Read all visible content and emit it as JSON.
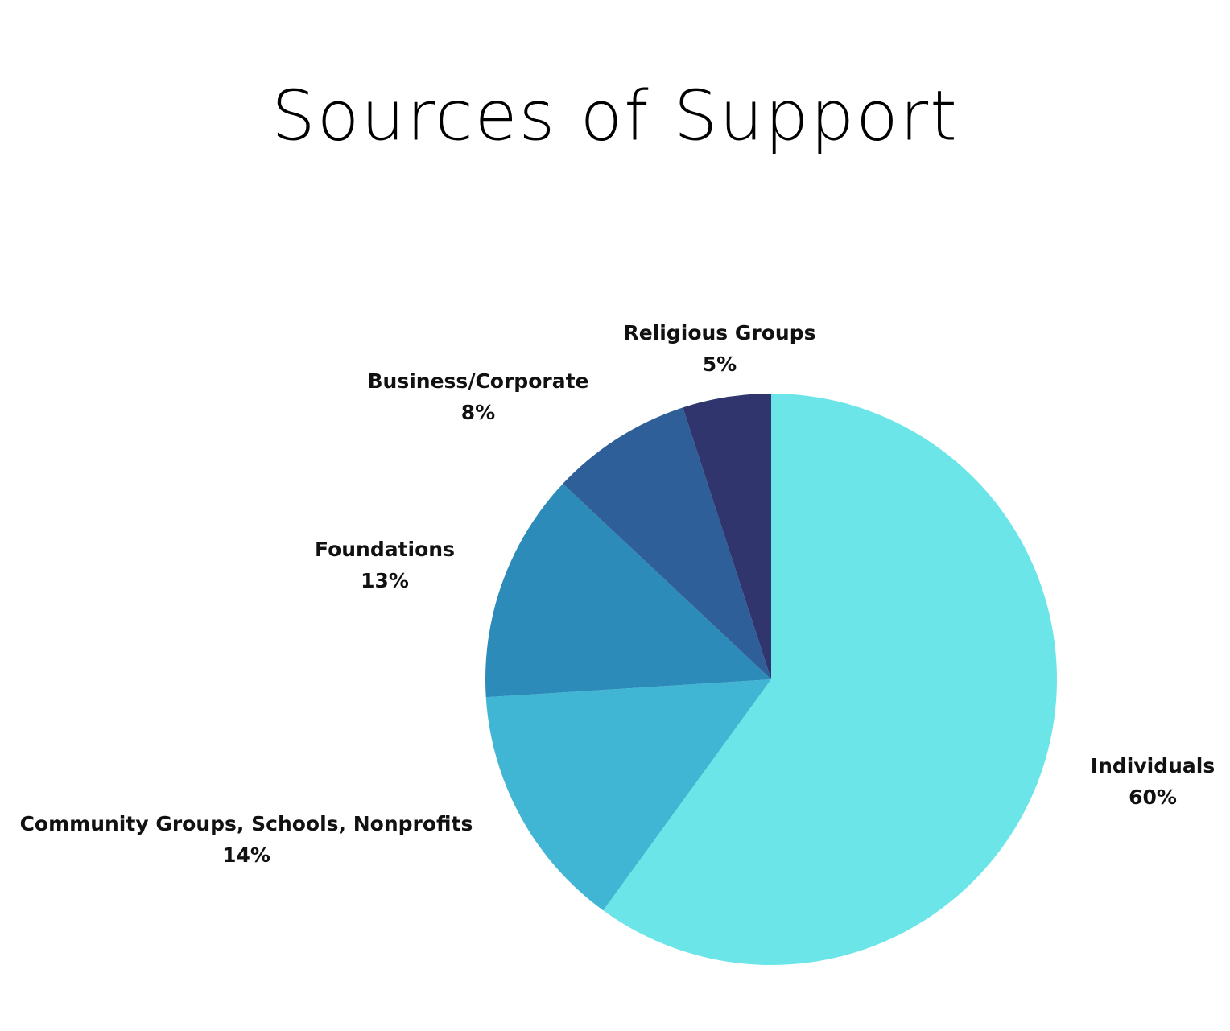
{
  "chart_data": {
    "type": "pie",
    "title": "Sources of Support",
    "categories": [
      "Individuals",
      "Community Groups, Schools, Nonprofits",
      "Foundations",
      "Business/Corporate",
      "Religious Groups"
    ],
    "values": [
      60,
      14,
      13,
      8,
      5
    ],
    "value_labels": [
      "60%",
      "14%",
      "13%",
      "8%",
      "5%"
    ],
    "colors": [
      "#6ce5e8",
      "#41b6d4",
      "#2d8bb9",
      "#2f5f98",
      "#31356e"
    ]
  }
}
